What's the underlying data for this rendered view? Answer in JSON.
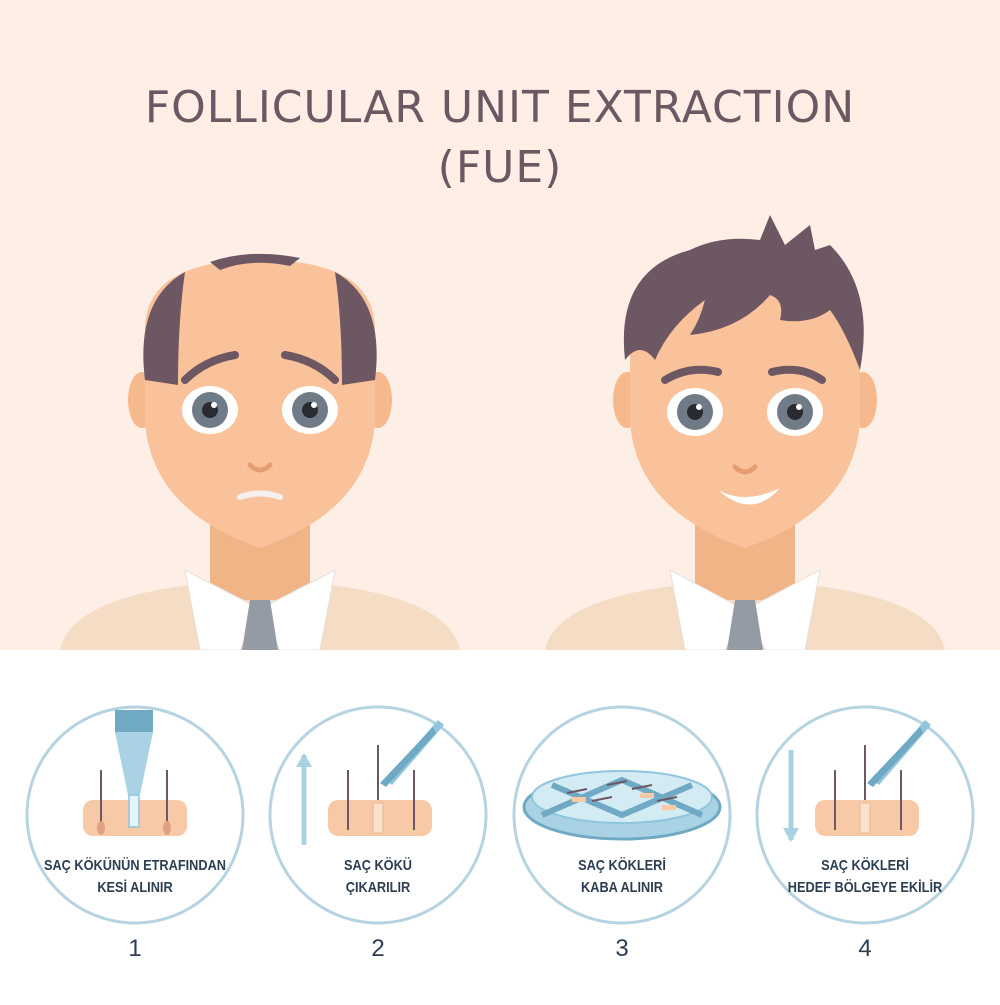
{
  "title": {
    "line1": "FOLLICULAR UNIT EXTRACTION",
    "line2": "(FUE)"
  },
  "colors": {
    "top_bg": "#fdefe6",
    "title": "#6d5762",
    "hair": "#6d5762",
    "skin": "#f9c29a",
    "circle_stroke": "#b6d3e2",
    "caption": "#2c3e52",
    "tool_blue": "#8fc6dc"
  },
  "portraits": [
    {
      "name": "before",
      "hair": "balding",
      "expression": "sad"
    },
    {
      "name": "after",
      "hair": "full",
      "expression": "smiling"
    }
  ],
  "steps": [
    {
      "number": "1",
      "line1": "SAÇ KÖKÜNÜN ETRAFINDAN",
      "line2": "KESİ ALINIR",
      "icon": "punch-tool-icon"
    },
    {
      "number": "2",
      "line1": "SAÇ KÖKÜ",
      "line2": "ÇIKARILIR",
      "icon": "tweezers-up-icon"
    },
    {
      "number": "3",
      "line1": "SAÇ KÖKLERİ",
      "line2": "KABA ALINIR",
      "icon": "petri-dish-icon"
    },
    {
      "number": "4",
      "line1": "SAÇ KÖKLERİ",
      "line2": "HEDEF BÖLGEYE EKİLİR",
      "icon": "tweezers-down-icon"
    }
  ]
}
